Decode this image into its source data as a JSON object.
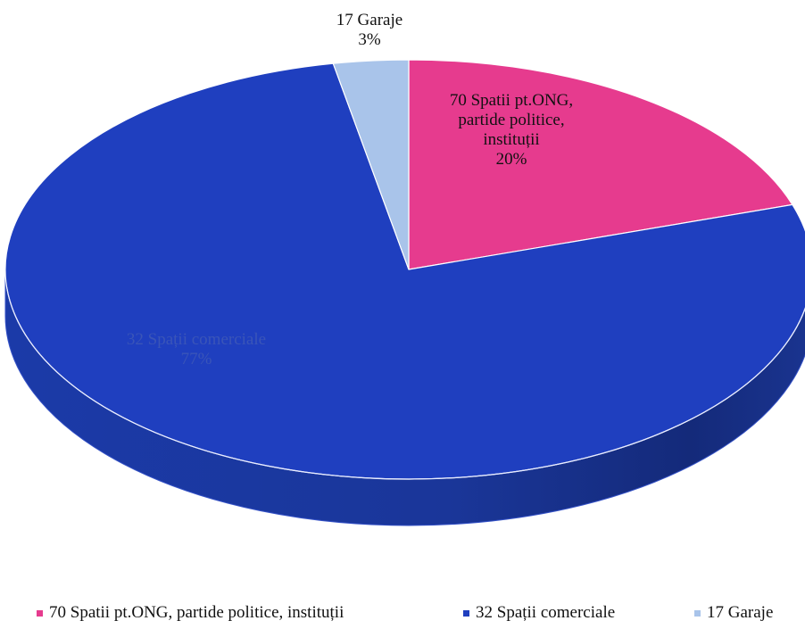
{
  "chart_data": {
    "type": "pie",
    "style": "3d",
    "slices": [
      {
        "name": "70 Spatii pt.ONG, partide politice, instituții",
        "label_lines": [
          "70 Spatii pt.ONG,",
          "partide politice,",
          "instituții"
        ],
        "percent_label": "20%",
        "value": 20,
        "color": "#e63b8e"
      },
      {
        "name": "32 Spații comerciale",
        "label_lines": [
          "32 Spații comerciale"
        ],
        "percent_label": "77%",
        "value": 77,
        "color": "#1f3fbf"
      },
      {
        "name": "17 Garaje",
        "label_lines": [
          "17 Garaje"
        ],
        "percent_label": "3%",
        "value": 3,
        "color": "#a9c4ea"
      }
    ],
    "legend": {
      "placement": "bottom",
      "entries": [
        "70 Spatii pt.ONG, partide politice, instituții",
        "32 Spații comerciale",
        "17 Garaje"
      ]
    }
  }
}
